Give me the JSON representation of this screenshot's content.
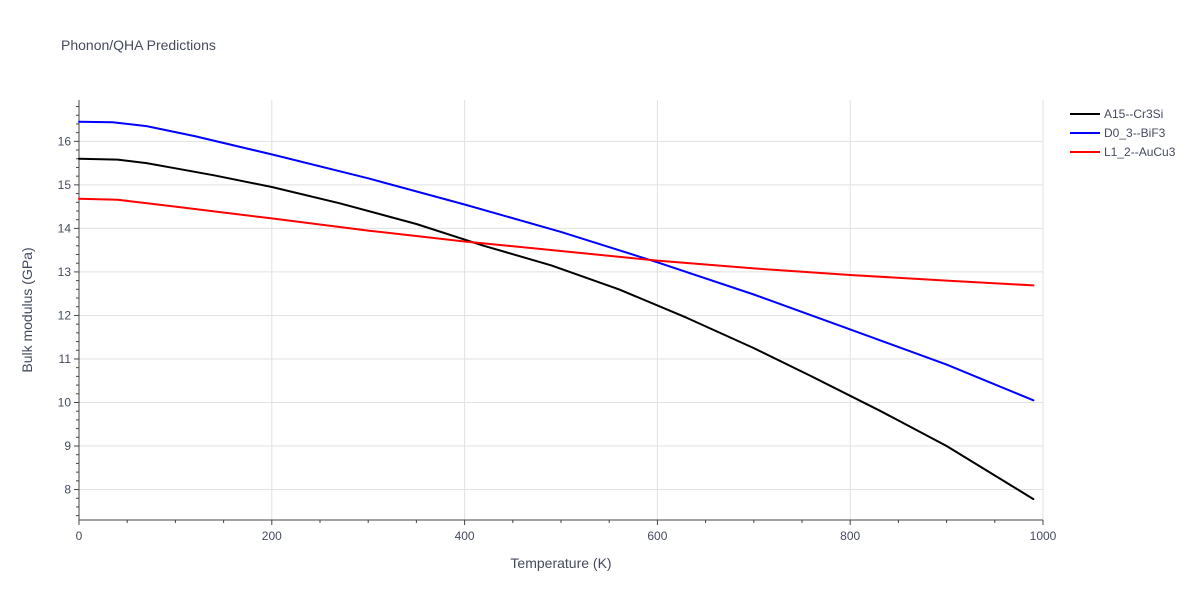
{
  "chart_data": {
    "type": "line",
    "title": "Phonon/QHA Predictions",
    "xlabel": "Temperature (K)",
    "ylabel": "Bulk modulus (GPa)",
    "xlim": [
      0,
      1000
    ],
    "ylim": [
      7.3,
      16.95
    ],
    "xticks": [
      0,
      200,
      400,
      600,
      800,
      1000
    ],
    "xtick_labels": [
      "0",
      "200",
      "400",
      "600",
      "800",
      "1000"
    ],
    "yticks": [
      8,
      9,
      10,
      11,
      12,
      13,
      14,
      15,
      16
    ],
    "ytick_labels": [
      "8",
      "9",
      "10",
      "11",
      "12",
      "13",
      "14",
      "15",
      "16"
    ],
    "x_minor_step": 50,
    "y_minor_step": 0.2,
    "grid": true,
    "legend_position": "top-right",
    "series": [
      {
        "name": "A15--Cr3Si",
        "color": "#000000",
        "x": [
          0,
          40,
          70,
          100,
          140,
          200,
          270,
          350,
          420,
          490,
          560,
          630,
          700,
          760,
          830,
          900,
          990
        ],
        "y": [
          15.6,
          15.58,
          15.5,
          15.38,
          15.22,
          14.95,
          14.58,
          14.1,
          13.6,
          13.15,
          12.6,
          11.95,
          11.25,
          10.6,
          9.82,
          9.0,
          7.78
        ]
      },
      {
        "name": "D0_3--BiF3",
        "color": "#0000ff",
        "x": [
          0,
          35,
          70,
          120,
          200,
          300,
          400,
          500,
          600,
          700,
          800,
          900,
          990
        ],
        "y": [
          16.45,
          16.44,
          16.35,
          16.12,
          15.7,
          15.15,
          14.55,
          13.92,
          13.22,
          12.48,
          11.68,
          10.87,
          10.05
        ]
      },
      {
        "name": "L1_2--AuCu3",
        "color": "#ff0000",
        "x": [
          0,
          40,
          100,
          200,
          300,
          400,
          500,
          600,
          700,
          800,
          900,
          990
        ],
        "y": [
          14.68,
          14.66,
          14.5,
          14.23,
          13.95,
          13.7,
          13.48,
          13.26,
          13.08,
          12.93,
          12.8,
          12.69
        ]
      }
    ]
  }
}
